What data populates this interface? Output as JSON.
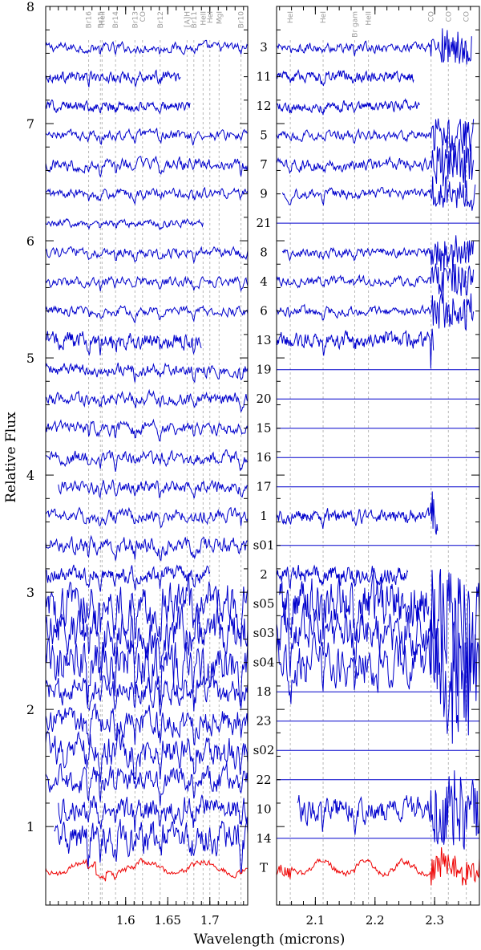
{
  "chart_data": {
    "type": "line",
    "title": "",
    "xlabel": "Wavelength (microns)",
    "ylabel": "Relative Flux",
    "grid": false,
    "legend": "none",
    "panels": [
      {
        "xlim": [
          1.505,
          1.745
        ],
        "xticks": [
          1.6,
          1.65,
          1.7
        ],
        "line_ids": [
          {
            "label": "Br16",
            "x": 1.556
          },
          {
            "label": "Br15",
            "x": 1.57
          },
          {
            "label": "HeII",
            "x": 1.572
          },
          {
            "label": "Br14",
            "x": 1.588
          },
          {
            "label": "Br13",
            "x": 1.611
          },
          {
            "label": "CO",
            "x": 1.62
          },
          {
            "label": "Br12",
            "x": 1.641
          },
          {
            "label": "[A]H",
            "x": 1.673
          },
          {
            "label": "Br11",
            "x": 1.681
          },
          {
            "label": "HeII",
            "x": 1.692
          },
          {
            "label": "HeI",
            "x": 1.7
          },
          {
            "label": "MgI",
            "x": 1.711
          },
          {
            "label": "Br10",
            "x": 1.737
          }
        ]
      },
      {
        "xlim": [
          2.035,
          2.375
        ],
        "xticks": [
          2.1,
          2.2,
          2.3
        ],
        "line_ids": [
          {
            "label": "HeI",
            "x": 2.058
          },
          {
            "label": "HeI",
            "x": 2.113
          },
          {
            "label": "Br gam",
            "x": 2.166
          },
          {
            "label": "HeII",
            "x": 2.189
          },
          {
            "label": "CO",
            "x": 2.294
          },
          {
            "label": "CO",
            "x": 2.323
          },
          {
            "label": "CO",
            "x": 2.353
          }
        ]
      }
    ],
    "ylim": [
      0.33,
      8.0
    ],
    "yticks": [
      1,
      2,
      3,
      4,
      5,
      6,
      7,
      8
    ],
    "colors": {
      "stars": "#0000cc",
      "telluric": "#ee0000"
    },
    "series": [
      {
        "name": "3",
        "offset": 7.65,
        "noise": 0.03,
        "h_start": 1.505,
        "h_end": 1.745,
        "k_start": 2.035,
        "k_end": 2.362,
        "k_flat": false
      },
      {
        "name": "11",
        "offset": 7.4,
        "noise": 0.03,
        "h_start": 1.505,
        "h_end": 1.665,
        "k_start": 2.035,
        "k_end": 2.265,
        "k_flat": false
      },
      {
        "name": "12",
        "offset": 7.15,
        "noise": 0.03,
        "h_start": 1.505,
        "h_end": 1.677,
        "k_start": 2.035,
        "k_end": 2.275,
        "k_flat": false
      },
      {
        "name": "5",
        "offset": 6.9,
        "noise": 0.03,
        "h_start": 1.505,
        "h_end": 1.745,
        "k_start": 2.035,
        "k_end": 2.365,
        "k_flat": false
      },
      {
        "name": "7",
        "offset": 6.65,
        "noise": 0.04,
        "h_start": 1.505,
        "h_end": 1.745,
        "k_start": 2.035,
        "k_end": 2.365,
        "k_flat": false
      },
      {
        "name": "9",
        "offset": 6.4,
        "noise": 0.03,
        "h_start": 1.505,
        "h_end": 1.745,
        "k_start": 2.045,
        "k_end": 2.368,
        "k_flat": false
      },
      {
        "name": "21",
        "offset": 6.15,
        "noise": 0.02,
        "h_start": 1.505,
        "h_end": 1.692,
        "k_start": 2.035,
        "k_end": 2.375,
        "k_flat": true
      },
      {
        "name": "8",
        "offset": 5.9,
        "noise": 0.03,
        "h_start": 1.505,
        "h_end": 1.745,
        "k_start": 2.045,
        "k_end": 2.365,
        "k_flat": false
      },
      {
        "name": "4",
        "offset": 5.65,
        "noise": 0.03,
        "h_start": 1.505,
        "h_end": 1.745,
        "k_start": 2.035,
        "k_end": 2.365,
        "k_flat": false
      },
      {
        "name": "6",
        "offset": 5.4,
        "noise": 0.03,
        "h_start": 1.505,
        "h_end": 1.745,
        "k_start": 2.035,
        "k_end": 2.365,
        "k_flat": false
      },
      {
        "name": "13",
        "offset": 5.15,
        "noise": 0.05,
        "h_start": 1.505,
        "h_end": 1.69,
        "k_start": 2.035,
        "k_end": 2.298,
        "k_flat": false
      },
      {
        "name": "19",
        "offset": 4.9,
        "noise": 0.04,
        "h_start": 1.505,
        "h_end": 1.745,
        "k_start": 2.035,
        "k_end": 2.375,
        "k_flat": true
      },
      {
        "name": "20",
        "offset": 4.65,
        "noise": 0.04,
        "h_start": 1.505,
        "h_end": 1.745,
        "k_start": 2.035,
        "k_end": 2.375,
        "k_flat": true
      },
      {
        "name": "15",
        "offset": 4.4,
        "noise": 0.04,
        "h_start": 1.505,
        "h_end": 1.745,
        "k_start": 2.035,
        "k_end": 2.375,
        "k_flat": true
      },
      {
        "name": "16",
        "offset": 4.15,
        "noise": 0.04,
        "h_start": 1.505,
        "h_end": 1.745,
        "k_start": 2.035,
        "k_end": 2.375,
        "k_flat": true
      },
      {
        "name": "17",
        "offset": 3.9,
        "noise": 0.04,
        "h_start": 1.52,
        "h_end": 1.745,
        "k_start": 2.035,
        "k_end": 2.375,
        "k_flat": true
      },
      {
        "name": "1",
        "offset": 3.65,
        "noise": 0.04,
        "h_start": 1.505,
        "h_end": 1.745,
        "k_start": 2.035,
        "k_end": 2.305,
        "k_flat": false
      },
      {
        "name": "s01",
        "offset": 3.4,
        "noise": 0.05,
        "h_start": 1.505,
        "h_end": 1.745,
        "k_start": 2.035,
        "k_end": 2.375,
        "k_flat": true
      },
      {
        "name": "2",
        "offset": 3.15,
        "noise": 0.05,
        "h_start": 1.505,
        "h_end": 1.7,
        "k_start": 2.035,
        "k_end": 2.255,
        "k_flat": false
      },
      {
        "name": "s05",
        "offset": 2.9,
        "noise": 0.14,
        "h_start": 1.505,
        "h_end": 1.745,
        "k_start": 2.04,
        "k_end": 2.29,
        "k_flat": false
      },
      {
        "name": "s03",
        "offset": 2.65,
        "noise": 0.14,
        "h_start": 1.505,
        "h_end": 1.745,
        "k_start": 2.035,
        "k_end": 2.375,
        "k_flat": false
      },
      {
        "name": "s04",
        "offset": 2.4,
        "noise": 0.14,
        "h_start": 1.505,
        "h_end": 1.745,
        "k_start": 2.035,
        "k_end": 2.375,
        "k_flat": false
      },
      {
        "name": "18",
        "offset": 2.15,
        "noise": 0.08,
        "h_start": 1.505,
        "h_end": 1.745,
        "k_start": 2.035,
        "k_end": 2.375,
        "k_flat": true
      },
      {
        "name": "23",
        "offset": 1.9,
        "noise": 0.08,
        "h_start": 1.505,
        "h_end": 1.745,
        "k_start": 2.035,
        "k_end": 2.375,
        "k_flat": true
      },
      {
        "name": "s02",
        "offset": 1.65,
        "noise": 0.1,
        "h_start": 1.505,
        "h_end": 1.745,
        "k_start": 2.035,
        "k_end": 2.375,
        "k_flat": true
      },
      {
        "name": "22",
        "offset": 1.4,
        "noise": 0.08,
        "h_start": 1.505,
        "h_end": 1.745,
        "k_start": 2.035,
        "k_end": 2.375,
        "k_flat": true
      },
      {
        "name": "10",
        "offset": 1.15,
        "noise": 0.08,
        "h_start": 1.52,
        "h_end": 1.745,
        "k_start": 2.07,
        "k_end": 2.375,
        "k_flat": false
      },
      {
        "name": "14",
        "offset": 0.9,
        "noise": 0.1,
        "h_start": 1.515,
        "h_end": 1.745,
        "k_start": 2.035,
        "k_end": 2.375,
        "k_flat": true
      },
      {
        "name": "T",
        "offset": 0.65,
        "noise": 0.02,
        "h_start": 1.505,
        "h_end": 1.745,
        "k_start": 2.035,
        "k_end": 2.375,
        "k_flat": false,
        "telluric": true
      }
    ]
  }
}
